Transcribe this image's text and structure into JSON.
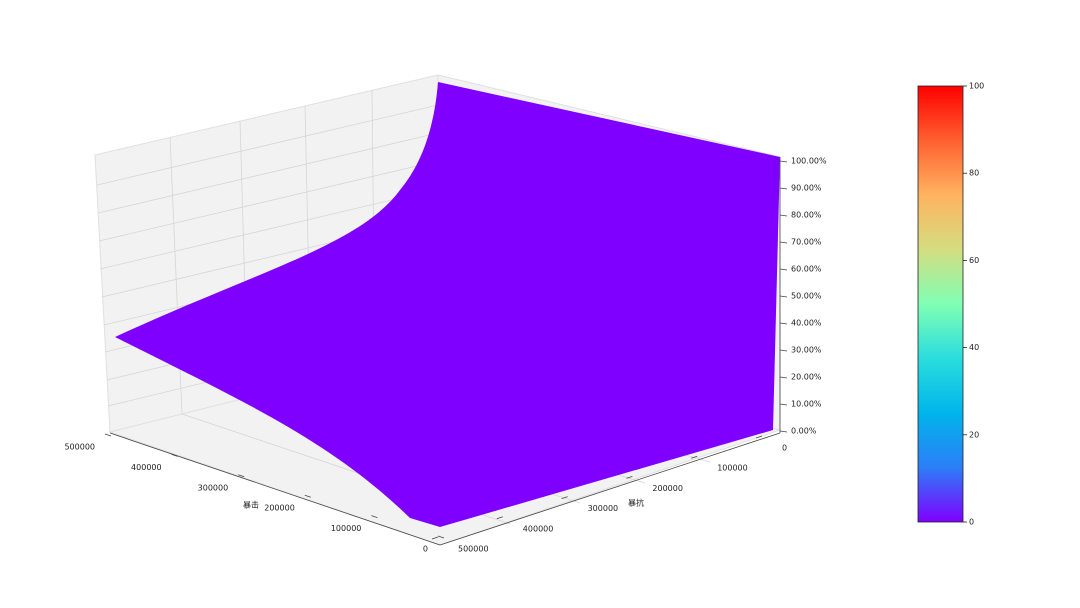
{
  "chart_data": {
    "type": "surface",
    "colormap": "rainbow",
    "xlabel": "暴击",
    "ylabel": "暴抗",
    "xlim": [
      0,
      500000
    ],
    "xticks": [
      0,
      100000,
      200000,
      300000,
      400000,
      500000
    ],
    "ylim": [
      0,
      500000
    ],
    "yticks": [
      0,
      100000,
      200000,
      300000,
      400000,
      500000
    ],
    "zlim": [
      0,
      100
    ],
    "zticks": [
      {
        "value": 0,
        "label": "0.00%"
      },
      {
        "value": 10,
        "label": "10.00%"
      },
      {
        "value": 20,
        "label": "20.00%"
      },
      {
        "value": 30,
        "label": "30.00%"
      },
      {
        "value": 40,
        "label": "40.00%"
      },
      {
        "value": 50,
        "label": "50.00%"
      },
      {
        "value": 60,
        "label": "60.00%"
      },
      {
        "value": 70,
        "label": "70.00%"
      },
      {
        "value": 80,
        "label": "80.00%"
      },
      {
        "value": 90,
        "label": "90.00%"
      },
      {
        "value": 100,
        "label": "100.00%"
      }
    ],
    "colorbar": {
      "lim": [
        0,
        100
      ],
      "ticks": [
        0,
        20,
        40,
        60,
        80,
        100
      ]
    }
  }
}
